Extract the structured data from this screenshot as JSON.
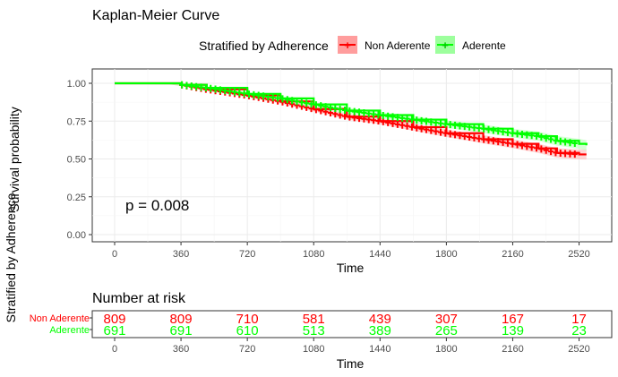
{
  "chart_data": [
    {
      "type": "line",
      "title": "Kaplan-Meier Curve",
      "legend": {
        "title": "Stratified by Adherence",
        "position": "top",
        "entries": [
          {
            "label": "Non Aderente",
            "color": "#ff0000"
          },
          {
            "label": "Aderente",
            "color": "#00ff00"
          }
        ]
      },
      "xlabel": "Time",
      "ylabel": "Survival probability",
      "xlim": [
        0,
        2600
      ],
      "ylim": [
        0,
        1
      ],
      "x_ticks": [
        0,
        360,
        720,
        1080,
        1440,
        1800,
        2160,
        2520
      ],
      "y_ticks": [
        "0.00",
        "0.25",
        "0.50",
        "0.75",
        "1.00"
      ],
      "grid": true,
      "annotation": "p = 0.008",
      "series": [
        {
          "name": "Non Aderente",
          "color": "#ff0000",
          "x": [
            0,
            300,
            360,
            500,
            720,
            900,
            1080,
            1260,
            1440,
            1620,
            1800,
            2000,
            2160,
            2300,
            2400,
            2520,
            2560
          ],
          "y": [
            1.0,
            1.0,
            0.99,
            0.96,
            0.92,
            0.88,
            0.83,
            0.78,
            0.75,
            0.71,
            0.67,
            0.63,
            0.6,
            0.57,
            0.54,
            0.53,
            0.53
          ]
        },
        {
          "name": "Aderente",
          "color": "#00ff00",
          "x": [
            0,
            300,
            360,
            500,
            720,
            900,
            1080,
            1260,
            1440,
            1620,
            1800,
            2000,
            2160,
            2300,
            2400,
            2520,
            2560
          ],
          "y": [
            1.0,
            1.0,
            0.99,
            0.97,
            0.93,
            0.9,
            0.86,
            0.82,
            0.79,
            0.76,
            0.73,
            0.7,
            0.67,
            0.65,
            0.62,
            0.6,
            0.59
          ]
        }
      ]
    },
    {
      "type": "table",
      "title": "Number at risk",
      "xlabel": "Time",
      "ylabel": "Stratified by Adherence",
      "x_ticks": [
        0,
        360,
        720,
        1080,
        1440,
        1800,
        2160,
        2520
      ],
      "rows": [
        {
          "name": "Non Aderente",
          "color": "#ff0000",
          "values": [
            809,
            809,
            710,
            581,
            439,
            307,
            167,
            17
          ]
        },
        {
          "name": "Aderente",
          "color": "#00ff00",
          "values": [
            691,
            691,
            610,
            513,
            389,
            265,
            139,
            23
          ]
        }
      ]
    }
  ]
}
